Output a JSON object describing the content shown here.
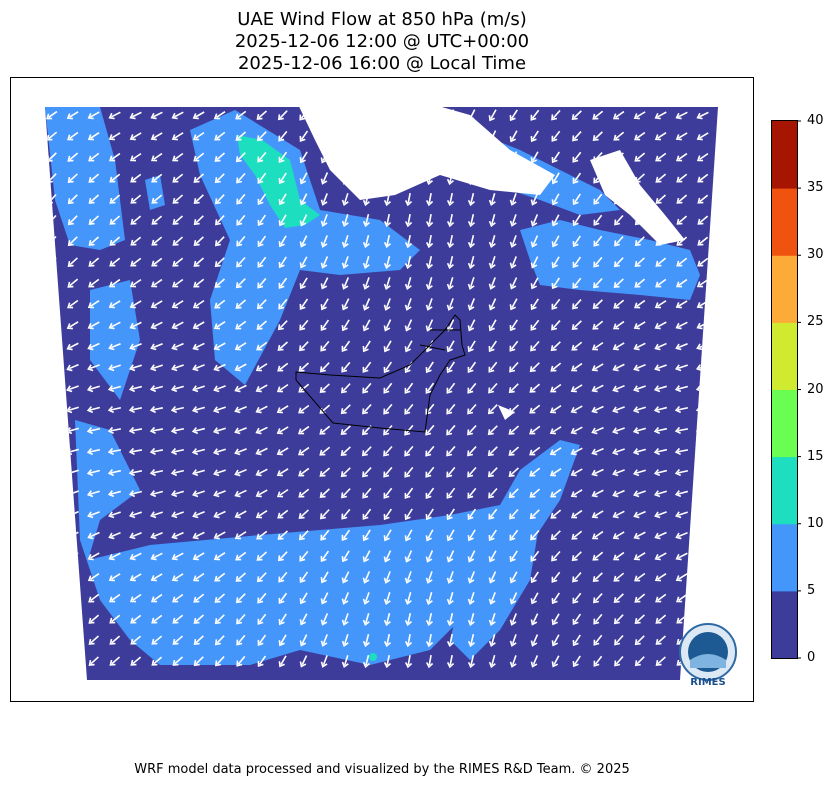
{
  "title": {
    "line1": "UAE Wind Flow at 850 hPa (m/s)",
    "line2": "2025-12-06 12:00 @ UTC+00:00",
    "line3": "2025-12-06 16:00 @ Local Time"
  },
  "colorbar": {
    "ticks": [
      "0",
      "5",
      "10",
      "15",
      "20",
      "25",
      "30",
      "35",
      "40"
    ],
    "colors": [
      "#3e3c9b",
      "#4496fa",
      "#1ddfc0",
      "#6afe52",
      "#cfea2f",
      "#fdab38",
      "#f0520f",
      "#a51502"
    ],
    "unit": "m/s"
  },
  "map": {
    "land_color": "#ffffff",
    "arrow_color": "#ffffff",
    "region_label": "UAE"
  },
  "logo": {
    "text": "RIMES",
    "ring_text": "Regional Integrated Multi-Hazard Early Warning System"
  },
  "footer": "WRF model data processed and visualized by the RIMES R&D Team. © 2025"
}
